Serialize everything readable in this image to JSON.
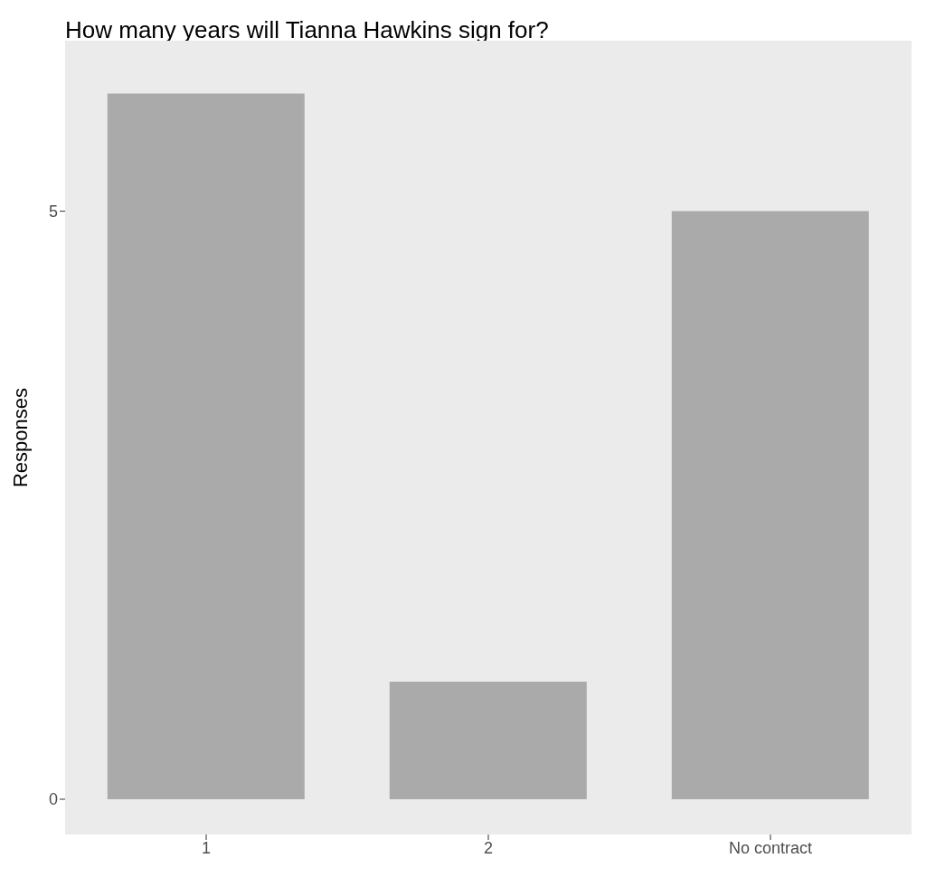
{
  "chart_data": {
    "type": "bar",
    "title": "How many years will Tianna Hawkins sign for?",
    "ylabel": "Responses",
    "categories": [
      "1",
      "2",
      "No contract"
    ],
    "values": [
      6,
      1,
      5
    ],
    "color": "#aaaaaa",
    "ylim": [
      -0.3,
      6.45
    ],
    "yticks": [
      0,
      5
    ],
    "grid": false
  }
}
